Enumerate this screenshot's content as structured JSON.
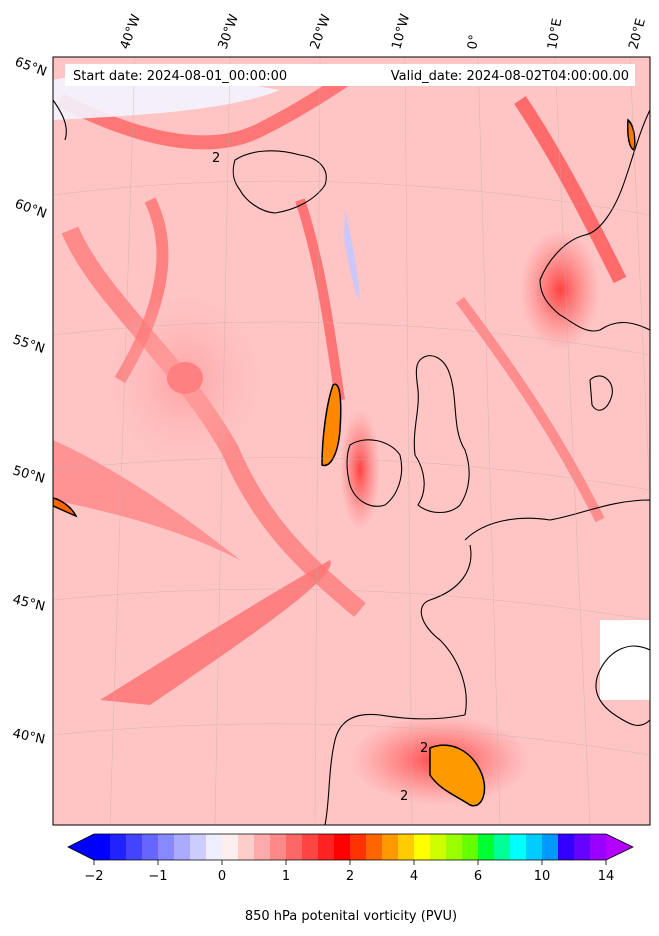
{
  "map": {
    "start_date": "Start date: 2024-08-01_00:00:00",
    "valid_date": "Valid_date: 2024-08-02T04:00:00.00",
    "lon_labels": [
      "40°W",
      "30°W",
      "20°W",
      "10°W",
      "0°",
      "10°E",
      "20°E"
    ],
    "lat_labels": [
      "65°N",
      "60°N",
      "55°N",
      "50°N",
      "45°N",
      "40°N"
    ],
    "contour_label": "2"
  },
  "colorbar": {
    "label": "850 hPa potenital vorticity (PVU)",
    "ticks": [
      "−2",
      "−1",
      "0",
      "1",
      "2",
      "4",
      "6",
      "10",
      "14"
    ],
    "colors": [
      "#0000ff",
      "#2222ff",
      "#4444ff",
      "#6666ff",
      "#8888ff",
      "#aaaaff",
      "#ccccff",
      "#eeeeff",
      "#ffeeee",
      "#ffcccc",
      "#ffaaaa",
      "#ff8888",
      "#ff6666",
      "#ff4444",
      "#ff2222",
      "#ff0000",
      "#ff3300",
      "#ff6600",
      "#ff9900",
      "#ffcc00",
      "#ffff00",
      "#ccff00",
      "#99ff00",
      "#66ff00",
      "#00ff33",
      "#00ff99",
      "#00ffff",
      "#00ccff",
      "#0099ff",
      "#3300ff",
      "#6600ff",
      "#9900ff"
    ],
    "under_color": "#0000ff",
    "over_color": "#b300ff"
  }
}
